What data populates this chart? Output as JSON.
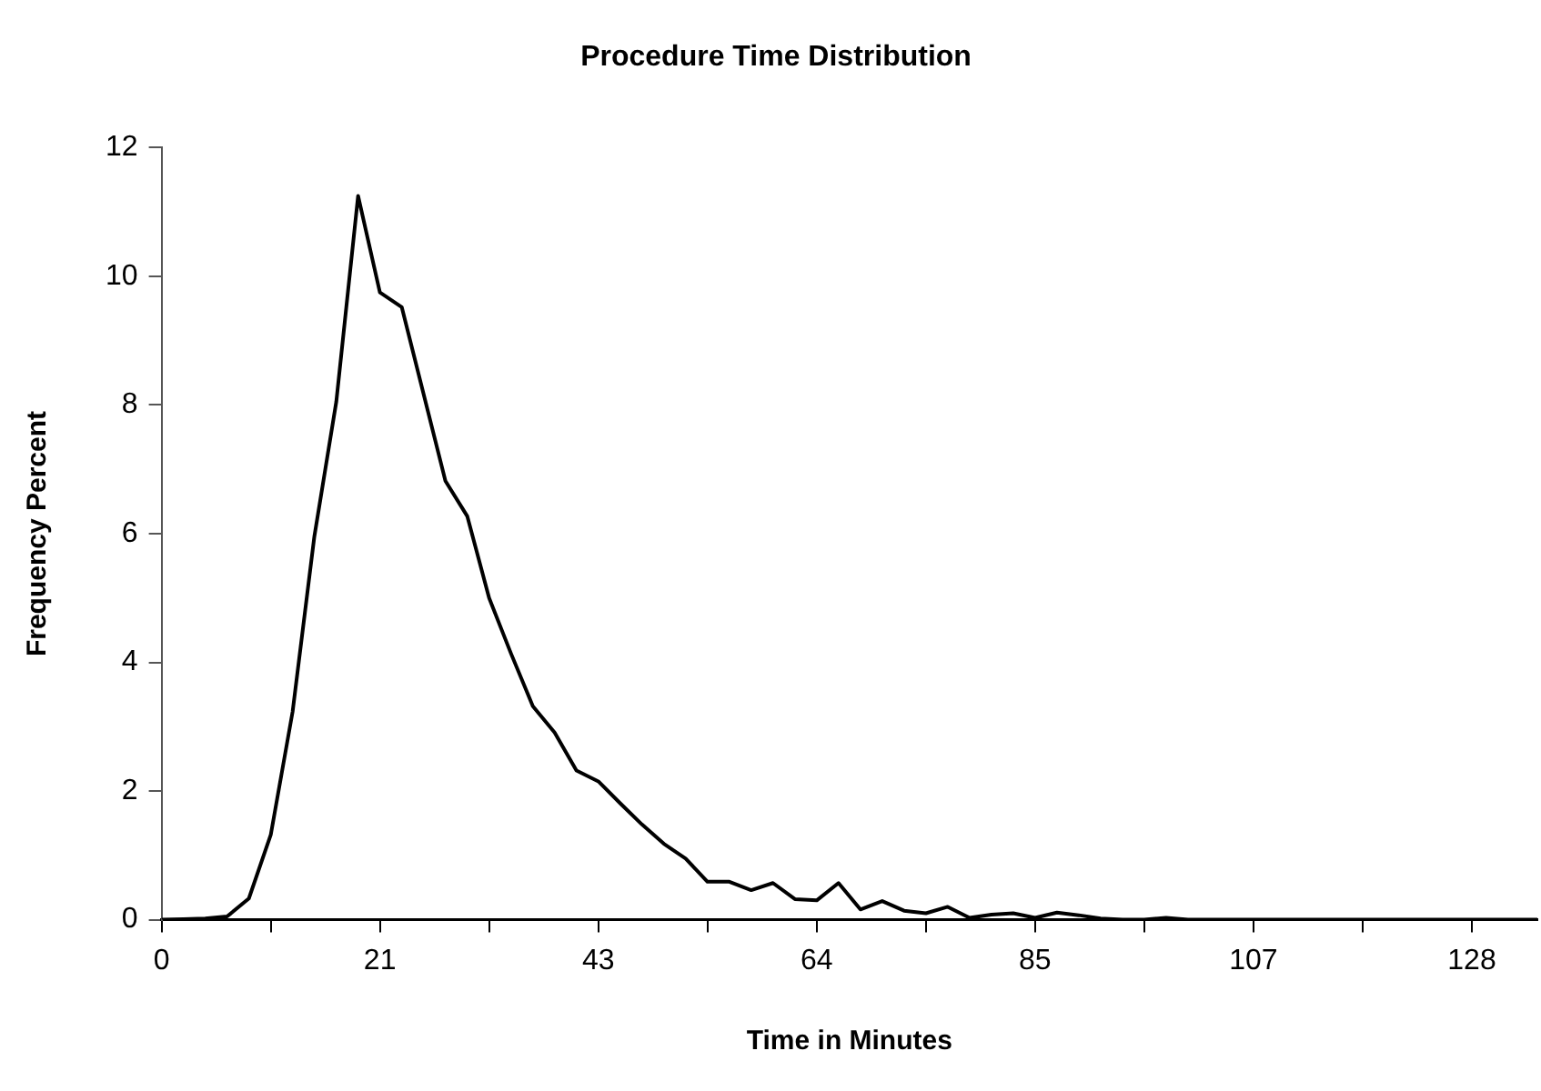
{
  "chart_data": {
    "type": "line",
    "title": "Procedure Time Distribution",
    "xlabel": "Time in Minutes",
    "ylabel": "Frequency Percent",
    "x": [
      0,
      2.13,
      4.27,
      6.4,
      8.53,
      10.67,
      12.8,
      14.93,
      17.07,
      19.2,
      21.33,
      23.47,
      25.6,
      27.73,
      29.87,
      32,
      34.13,
      36.27,
      38.4,
      40.53,
      42.67,
      44.8,
      46.93,
      49.07,
      51.2,
      53.33,
      55.47,
      57.6,
      59.73,
      61.87,
      64,
      66.13,
      68.27,
      70.4,
      72.53,
      74.67,
      76.8,
      78.93,
      81.07,
      83.2,
      85.33,
      87.47,
      89.6,
      91.73,
      93.87,
      96,
      98.13,
      100.27,
      102.4,
      104.53,
      106.67,
      108.8,
      110.93,
      113.07,
      115.2,
      117.33,
      119.47,
      121.6,
      123.73,
      125.87,
      128,
      130.13,
      132.27,
      134.4
    ],
    "series": [
      {
        "color": "#000000",
        "values": [
          0,
          0.01,
          0.02,
          0.05,
          0.33,
          1.32,
          3.23,
          5.96,
          8.05,
          11.25,
          9.75,
          9.52,
          8.17,
          6.82,
          6.27,
          5.0,
          4.14,
          3.32,
          2.91,
          2.32,
          2.15,
          1.81,
          1.48,
          1.18,
          0.95,
          0.59,
          0.59,
          0.46,
          0.57,
          0.32,
          0.3,
          0.57,
          0.16,
          0.29,
          0.14,
          0.1,
          0.2,
          0.03,
          0.08,
          0.1,
          0.03,
          0.11,
          0.07,
          0.02,
          0,
          0,
          0.03,
          0,
          0,
          0,
          0,
          0,
          0,
          0,
          0,
          0,
          0,
          0,
          0,
          0,
          0,
          0,
          0,
          0
        ]
      }
    ],
    "xlim": [
      0,
      134.4
    ],
    "xticks": [
      0,
      {
        "value": 10.67,
        "label": null
      },
      {
        "value": 21.33,
        "label": "21"
      },
      {
        "value": 32,
        "label": null
      },
      {
        "value": 42.67,
        "label": "43"
      },
      {
        "value": 53.33,
        "label": null
      },
      64,
      {
        "value": 74.67,
        "label": null
      },
      {
        "value": 85.33,
        "label": "85"
      },
      {
        "value": 96,
        "label": null
      },
      {
        "value": 106.67,
        "label": "107"
      },
      {
        "value": 117.33,
        "label": null
      },
      128
    ],
    "ylim": [
      0,
      12
    ],
    "yticks": [
      0,
      2,
      4,
      6,
      8,
      10,
      12
    ],
    "grid": false,
    "legend": false,
    "marker": "none",
    "line_style": "solid"
  }
}
